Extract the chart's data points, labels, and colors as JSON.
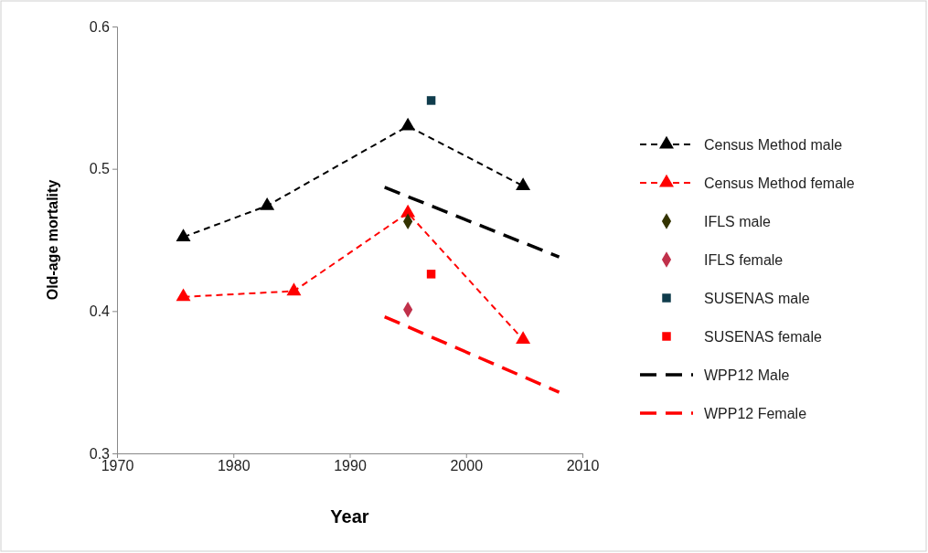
{
  "chart_data": {
    "type": "line",
    "xlabel": "Year",
    "ylabel": "Old-age mortality",
    "xlim": [
      1970,
      2010
    ],
    "xticks": [
      1970,
      1980,
      1990,
      2000,
      2010
    ],
    "ylim": [
      0.3,
      0.6
    ],
    "yticks": [
      0.3,
      0.4,
      0.5,
      0.6
    ],
    "grid": false,
    "legend": "right",
    "series": [
      {
        "name": "Census Method male",
        "color": "#000000",
        "marker": "triangle",
        "line_style": "dashed",
        "x": [
          1975.7,
          1982.9,
          1995.0,
          2004.9
        ],
        "values": [
          0.452,
          0.474,
          0.53,
          0.488
        ]
      },
      {
        "name": "Census Method female",
        "color": "#ff0000",
        "marker": "triangle",
        "line_style": "dashed",
        "x": [
          1975.7,
          1985.2,
          1995.0,
          2004.9
        ],
        "values": [
          0.41,
          0.414,
          0.469,
          0.38
        ]
      },
      {
        "name": "IFLS male",
        "type": "scatter",
        "color": "#333300",
        "marker": "diamond",
        "x": [
          1995.0
        ],
        "values": [
          0.463
        ]
      },
      {
        "name": "IFLS female",
        "type": "scatter",
        "color": "#c0304a",
        "marker": "diamond",
        "x": [
          1995.0
        ],
        "values": [
          0.401
        ]
      },
      {
        "name": "SUSENAS male",
        "type": "scatter",
        "color": "#0f3c4c",
        "marker": "square",
        "x": [
          1997.0
        ],
        "values": [
          0.548
        ]
      },
      {
        "name": "SUSENAS female",
        "type": "scatter",
        "color": "#ff0000",
        "marker": "square",
        "x": [
          1997.0
        ],
        "values": [
          0.426
        ]
      },
      {
        "name": "WPP12 Male",
        "color": "#000000",
        "marker": "none",
        "line_style": "dashed",
        "x": [
          1993.0,
          2008.0
        ],
        "values": [
          0.487,
          0.438
        ]
      },
      {
        "name": "WPP12 Female",
        "color": "#ff0000",
        "marker": "none",
        "line_style": "dashed",
        "x": [
          1993.0,
          2008.0
        ],
        "values": [
          0.396,
          0.343
        ]
      }
    ]
  }
}
